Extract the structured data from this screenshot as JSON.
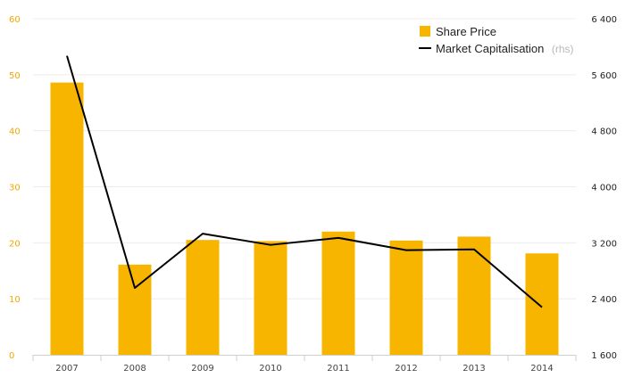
{
  "chart_data": {
    "type": "bar",
    "categories": [
      "2007",
      "2008",
      "2009",
      "2010",
      "2011",
      "2012",
      "2013",
      "2014"
    ],
    "series": [
      {
        "name": "Share Price",
        "type": "bar",
        "axis": "left",
        "color": "#f7b500",
        "values": [
          48.6,
          16.1,
          20.5,
          20.3,
          22.0,
          20.4,
          21.1,
          18.1
        ]
      },
      {
        "name": "Market Capitalisation",
        "type": "line",
        "axis": "right",
        "color": "#000000",
        "values": [
          5870,
          2555,
          3330,
          3170,
          3270,
          3095,
          3105,
          2280
        ]
      }
    ],
    "legend_note": "(rhs)",
    "y_left": {
      "ylim": [
        0,
        60
      ],
      "ticks": [
        "0",
        "10",
        "20",
        "30",
        "40",
        "50",
        "60"
      ],
      "tick_color": "#f0a800"
    },
    "y_right": {
      "ylim": [
        1600,
        6400
      ],
      "ticks": [
        "1 600",
        "2 400",
        "3 200",
        "4 000",
        "4 800",
        "5 600",
        "6 400"
      ],
      "tick_color": "#222222"
    },
    "grid": true,
    "legend_position": "top-right"
  }
}
